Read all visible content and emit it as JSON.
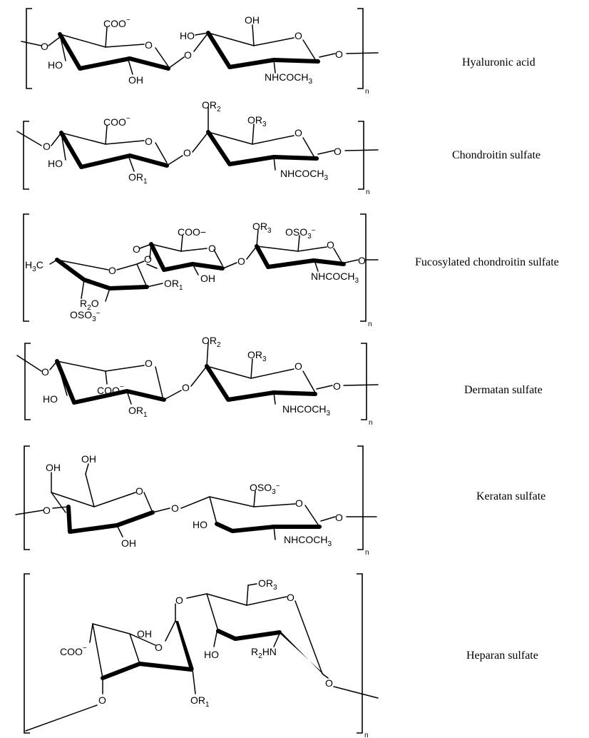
{
  "figure": {
    "repeat_subscript": "n",
    "structures": [
      {
        "name": "Hyaluronic acid",
        "labels": {
          "o_link_left": "O",
          "coo": "COO",
          "coo_charge": "−",
          "ring_o1": "O",
          "ho": "HO",
          "oh_bottom": "OH",
          "glyco_o": "O",
          "ho_top": "HO",
          "oh_top": "OH",
          "ring_o2": "O",
          "nhcoch": "NHCOCH",
          "nhcoch_sub": "3",
          "o_link_right": "O"
        }
      },
      {
        "name": "Chondroitin sulfate",
        "labels": {
          "o_link_left": "O",
          "coo": "COO",
          "coo_charge": "−",
          "ring_o1": "O",
          "ho": "HO",
          "or1": "OR",
          "or1_sub": "1",
          "glyco_o": "O",
          "or2": "OR",
          "or2_sub": "2",
          "or3": "OR",
          "or3_sub": "3",
          "ring_o2": "O",
          "nhcoch": "NHCOCH",
          "nhcoch_sub": "3",
          "o_link_right": "O"
        }
      },
      {
        "name": "Fucosylated chondroitin sulfate",
        "labels": {
          "o_link_top": "O",
          "coo": "COO−",
          "ring_o1": "O",
          "oh": "OH",
          "glyco_o": "O",
          "or3": "OR",
          "or3_sub": "3",
          "oso3": "OSO",
          "oso3_sub": "3",
          "oso3_charge": "−",
          "ring_o2": "O",
          "nhcoch": "NHCOCH",
          "nhcoch_sub": "3",
          "o_link_right": "O",
          "h3c": "H",
          "h3c_sub": "3",
          "h3c_c": "C",
          "ring_o3": "O",
          "fuc_o": "O",
          "or1": "OR",
          "or1_sub": "1",
          "r2o": "R",
          "r2o_sub": "2",
          "r2o_o": "O",
          "fuc_oso3": "OSO",
          "fuc_oso3_sub": "3",
          "fuc_oso3_charge": "−"
        }
      },
      {
        "name": "Dermatan sulfate",
        "labels": {
          "o_link_left": "O",
          "ring_o1": "O",
          "coo": "COO",
          "coo_charge": "−",
          "ho": "HO",
          "or1": "OR",
          "or1_sub": "1",
          "glyco_o": "O",
          "or2": "OR",
          "or2_sub": "2",
          "or3": "OR",
          "or3_sub": "3",
          "ring_o2": "O",
          "nhcoch": "NHCOCH",
          "nhcoch_sub": "3",
          "o_link_right": "O"
        }
      },
      {
        "name": "Keratan sulfate",
        "labels": {
          "oh_ch2": "OH",
          "oh_c4": "OH",
          "ring_o1": "O",
          "o_link_left": "O",
          "oh_bottom": "OH",
          "glyco_o": "O",
          "oso3": "OSO",
          "oso3_sub": "3",
          "oso3_charge": "−",
          "ring_o2": "O",
          "ho": "HO",
          "nhcoch": "NHCOCH",
          "nhcoch_sub": "3",
          "o_link_right": "O"
        }
      },
      {
        "name": "Heparan sulfate",
        "labels": {
          "or3": "OR",
          "or3_sub": "3",
          "ring_o_glcn": "O",
          "o_glyco_top": "O",
          "oh": "OH",
          "ring_o_ido": "O",
          "coo": "COO",
          "coo_charge": "−",
          "ho": "HO",
          "r2hn": "R",
          "r2hn_sub": "2",
          "r2hn_hn": "HN",
          "o_link_bottom_left": "O",
          "or1": "OR",
          "or1_sub": "1",
          "o_link_right": "O"
        }
      }
    ]
  }
}
